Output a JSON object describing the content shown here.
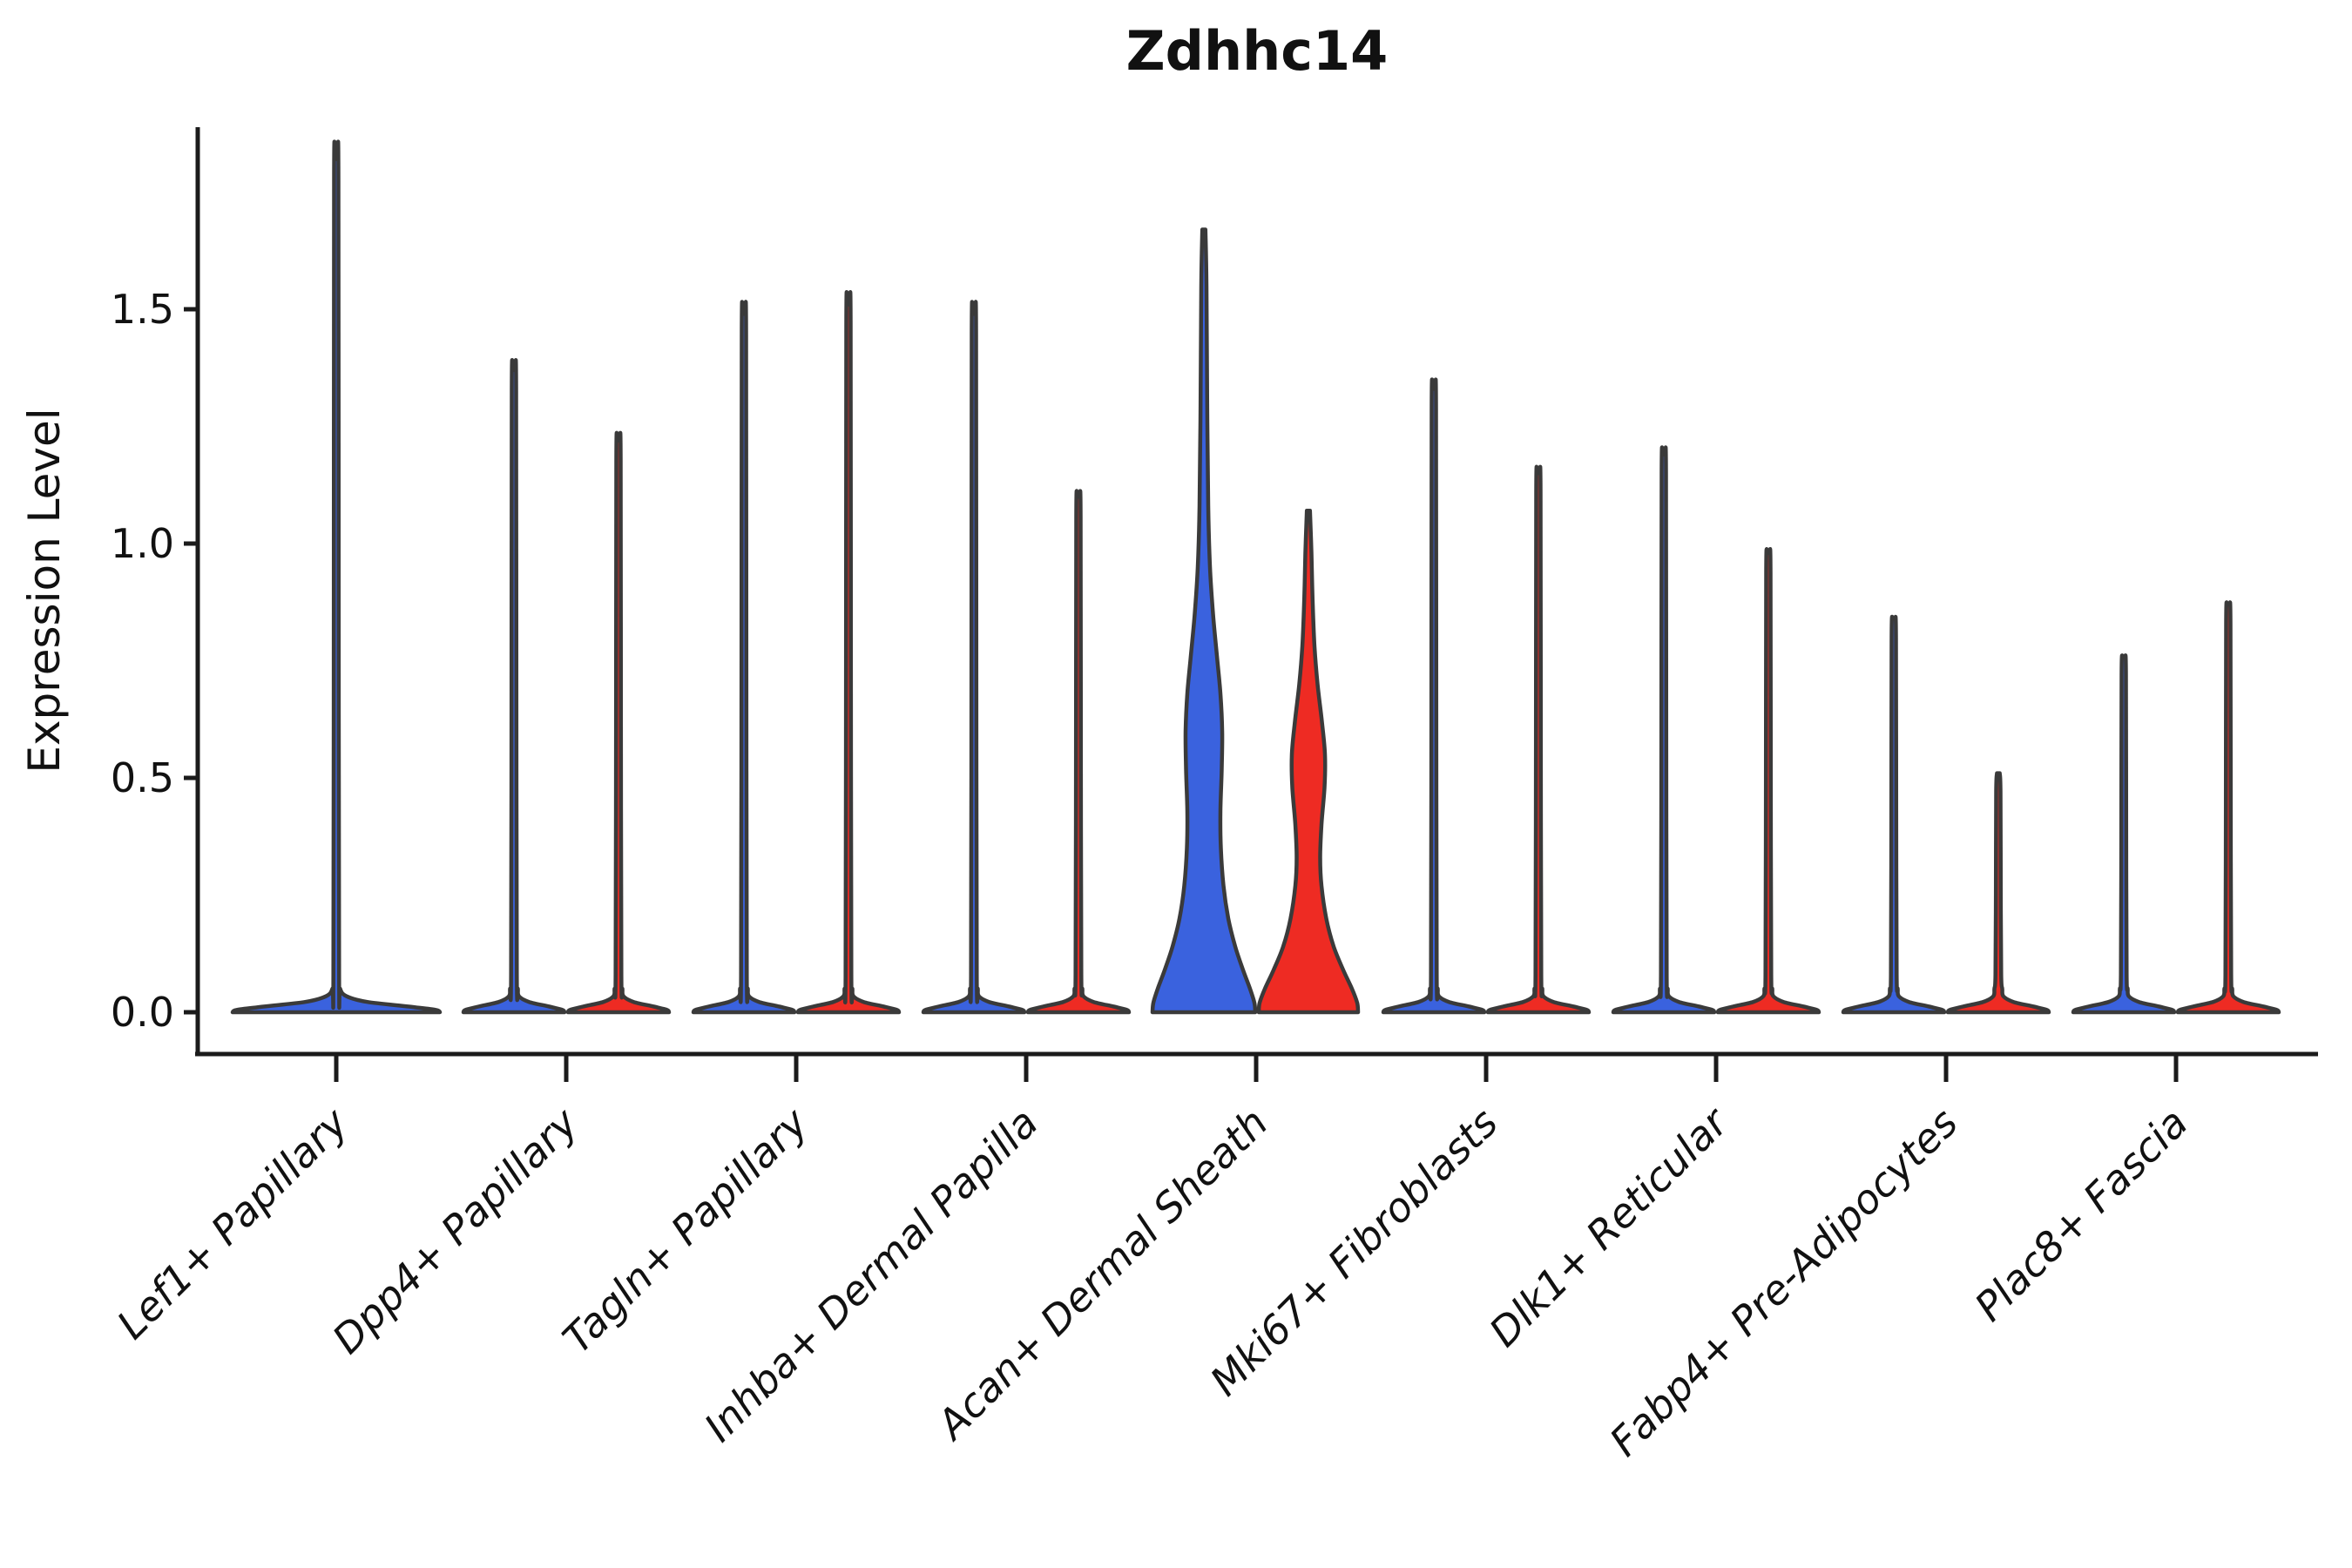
{
  "title": "Zdhhc14",
  "y_axis": {
    "label": "Expression Level",
    "tick_labels": [
      "0.0",
      "0.5",
      "1.0",
      "1.5"
    ]
  },
  "x_axis": {
    "categories": [
      "Lef1+ Papillary",
      "Dpp4+ Papillary",
      "Tagln+ Papillary",
      "Inhba+ Dermal Papilla",
      "Acan+ Dermal Sheath",
      "Mki67+ Fibroblasts",
      "Dlk1+ Reticular",
      "Fabp4+ Pre-Adipocytes",
      "Plac8+ Fascia"
    ]
  },
  "colors": {
    "background": "#ffffff",
    "axis": "#1b1b1b",
    "text": "#111111",
    "violin_outline": "#3a3a3a",
    "violin_blue": "#3a62de",
    "violin_red": "#ee2b23"
  },
  "chart_data": {
    "type": "violin",
    "title": "Zdhhc14",
    "xlabel": "",
    "ylabel": "Expression Level",
    "ylim": [
      -0.09,
      1.89
    ],
    "yticks": [
      0.0,
      0.5,
      1.0,
      1.5
    ],
    "grid": false,
    "legend": "none",
    "x_tick_rotation_deg": 45,
    "categories": [
      "Lef1+ Papillary",
      "Dpp4+ Papillary",
      "Tagln+ Papillary",
      "Inhba+ Dermal Papilla",
      "Acan+ Dermal Sheath",
      "Mki67+ Fibroblasts",
      "Dlk1+ Reticular",
      "Fabp4+ Pre-Adipocytes",
      "Plac8+ Fascia"
    ],
    "description": "Split violin plot of Zdhhc14 expression; nearly all mass at 0 for every cluster (flat disk at baseline) with a thin density spike up to the maximum expression value. Only Acan+ Dermal Sheath shows visibly wide blue (left) and red (right) violins.",
    "violins": [
      {
        "category_index": 0,
        "side": "full",
        "peak": 1.82,
        "base_halfwidth": 119,
        "fill": "#3a62de",
        "shape": "spike"
      },
      {
        "category_index": 1,
        "side": "left",
        "peak": 1.37,
        "base_halfwidth": 58,
        "fill": "#3a62de",
        "shape": "spike"
      },
      {
        "category_index": 1,
        "side": "right",
        "peak": 1.22,
        "base_halfwidth": 58,
        "fill": "#ee2b23",
        "shape": "spike"
      },
      {
        "category_index": 2,
        "side": "left",
        "peak": 1.49,
        "base_halfwidth": 58,
        "fill": "#3a62de",
        "shape": "spike"
      },
      {
        "category_index": 2,
        "side": "right",
        "peak": 1.51,
        "base_halfwidth": 58,
        "fill": "#ee2b23",
        "shape": "spike"
      },
      {
        "category_index": 3,
        "side": "left",
        "peak": 1.49,
        "base_halfwidth": 58,
        "fill": "#3a62de",
        "shape": "spike"
      },
      {
        "category_index": 3,
        "side": "right",
        "peak": 1.1,
        "base_halfwidth": 58,
        "fill": "#ee2b23",
        "shape": "spike"
      },
      {
        "category_index": 4,
        "side": "left",
        "peak": 1.67,
        "base_halfwidth": 59,
        "fill": "#3a62de",
        "shape": "profile",
        "profile": [
          [
            0,
            59
          ],
          [
            0.02,
            58
          ],
          [
            0.05,
            53
          ],
          [
            0.09,
            45
          ],
          [
            0.14,
            36
          ],
          [
            0.2,
            28
          ],
          [
            0.27,
            22.5
          ],
          [
            0.35,
            19.5
          ],
          [
            0.43,
            19
          ],
          [
            0.52,
            20.5
          ],
          [
            0.6,
            21
          ],
          [
            0.68,
            19
          ],
          [
            0.76,
            15
          ],
          [
            0.85,
            10.5
          ],
          [
            0.95,
            7
          ],
          [
            1.08,
            5
          ],
          [
            1.3,
            3.8
          ],
          [
            1.55,
            3.0
          ],
          [
            1.67,
            1.8
          ]
        ]
      },
      {
        "category_index": 4,
        "side": "right",
        "peak": 1.07,
        "base_halfwidth": 57,
        "fill": "#ee2b23",
        "shape": "profile",
        "profile": [
          [
            0,
            57
          ],
          [
            0.02,
            56
          ],
          [
            0.05,
            50
          ],
          [
            0.09,
            40
          ],
          [
            0.14,
            29
          ],
          [
            0.2,
            20.5
          ],
          [
            0.27,
            15
          ],
          [
            0.33,
            13.5
          ],
          [
            0.4,
            15
          ],
          [
            0.48,
            18.5
          ],
          [
            0.55,
            19
          ],
          [
            0.62,
            15.5
          ],
          [
            0.7,
            10.5
          ],
          [
            0.78,
            7
          ],
          [
            0.88,
            4.8
          ],
          [
            0.98,
            3.5
          ],
          [
            1.07,
            1.8
          ]
        ]
      },
      {
        "category_index": 5,
        "side": "left",
        "peak": 1.33,
        "base_halfwidth": 58,
        "fill": "#3a62de",
        "shape": "spike"
      },
      {
        "category_index": 5,
        "side": "right",
        "peak": 1.15,
        "base_halfwidth": 58,
        "fill": "#ee2b23",
        "shape": "spike"
      },
      {
        "category_index": 6,
        "side": "left",
        "peak": 1.19,
        "base_halfwidth": 58,
        "fill": "#3a62de",
        "shape": "spike"
      },
      {
        "category_index": 6,
        "side": "right",
        "peak": 0.98,
        "base_halfwidth": 58,
        "fill": "#ee2b23",
        "shape": "spike"
      },
      {
        "category_index": 7,
        "side": "left",
        "peak": 0.84,
        "base_halfwidth": 58,
        "fill": "#3a62de",
        "shape": "spike"
      },
      {
        "category_index": 7,
        "side": "right",
        "peak": 0.51,
        "base_halfwidth": 58,
        "fill": "#ee2b23",
        "shape": "spike"
      },
      {
        "category_index": 8,
        "side": "left",
        "peak": 0.76,
        "base_halfwidth": 58,
        "fill": "#3a62de",
        "shape": "spike"
      },
      {
        "category_index": 8,
        "side": "right",
        "peak": 0.87,
        "base_halfwidth": 58,
        "fill": "#ee2b23",
        "shape": "spike"
      }
    ]
  }
}
